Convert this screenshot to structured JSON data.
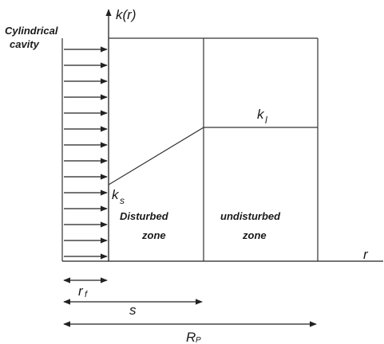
{
  "diagram": {
    "cavity_label_line1": "Cylindrical",
    "cavity_label_line2": "cavity",
    "y_axis_label": "k(r)",
    "x_axis_label": "r",
    "ks_label_main": "k",
    "ks_label_sub": "s",
    "kl_label_main": "k",
    "kl_label_sub": "l",
    "disturbed_line1": "Disturbed",
    "disturbed_line2": "zone",
    "undisturbed_line1": "undisturbed",
    "undisturbed_line2": "zone",
    "rf_label_main": "r",
    "rf_label_sub": "f",
    "s_label": "s",
    "rp_label_main": "R",
    "rp_label_sub": "P",
    "arrow_count": 14
  }
}
